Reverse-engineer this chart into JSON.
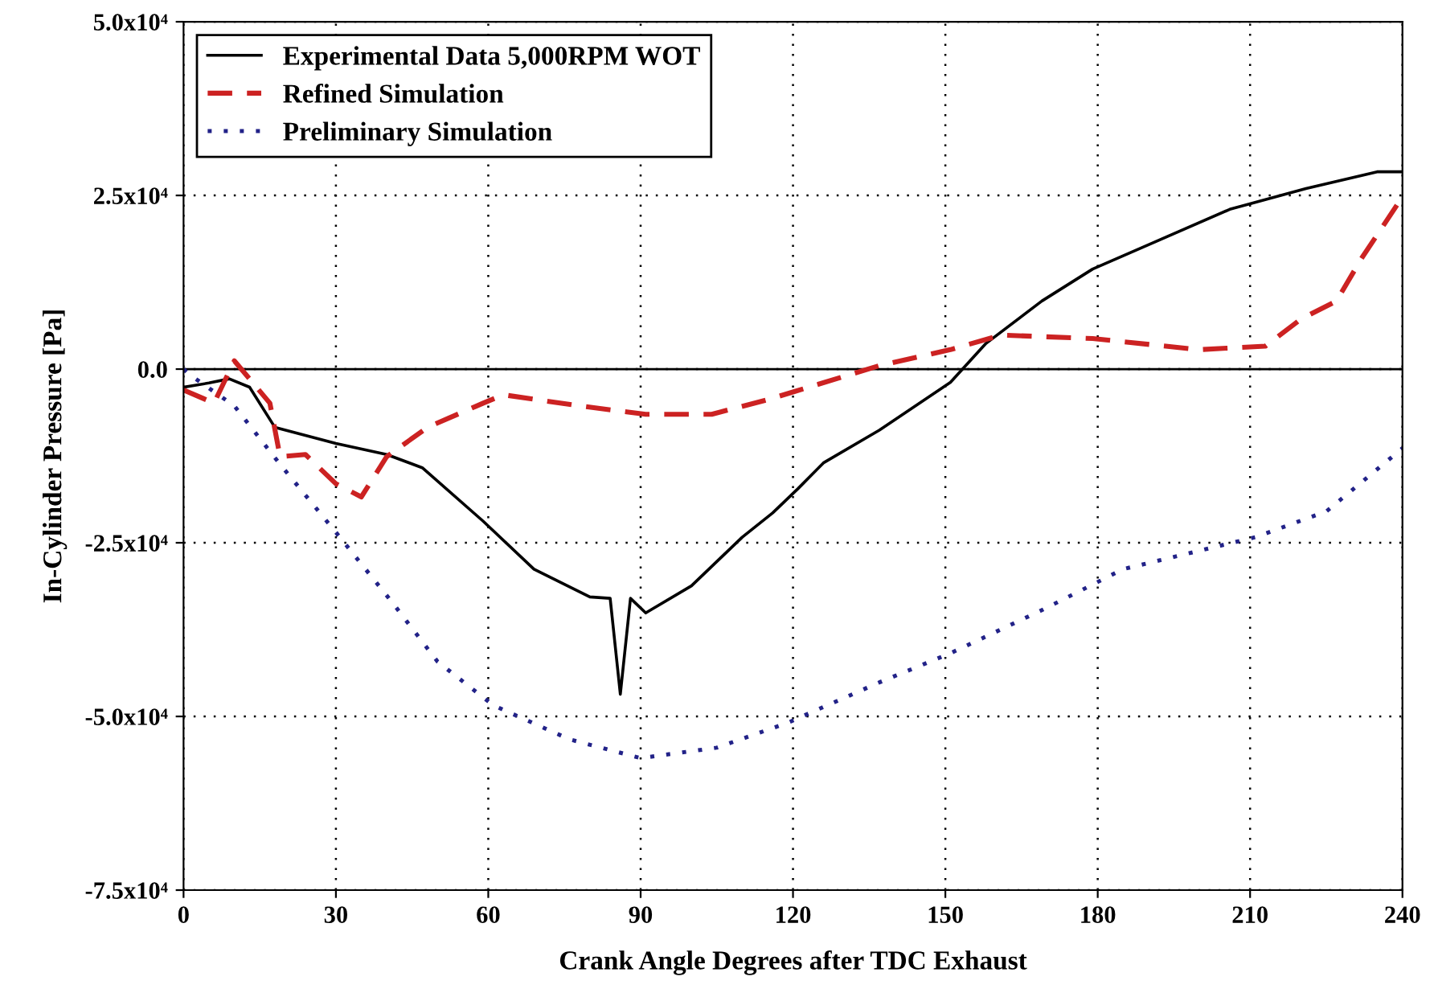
{
  "chart_data": {
    "type": "line",
    "xlabel": "Crank Angle Degrees after TDC Exhaust",
    "ylabel": "In-Cylinder Pressure [Pa]",
    "xlim": [
      0,
      240
    ],
    "xticks": [
      0,
      30,
      60,
      90,
      120,
      150,
      180,
      210,
      240
    ],
    "ylim": [
      -75000,
      50000
    ],
    "yticks": [
      {
        "value": -75000,
        "label": "-7.5x10⁴"
      },
      {
        "value": -50000,
        "label": "-5.0x10⁴"
      },
      {
        "value": -25000,
        "label": "-2.5x10⁴"
      },
      {
        "value": 0,
        "label": "0.0"
      },
      {
        "value": 25000,
        "label": "2.5x10⁴"
      },
      {
        "value": 50000,
        "label": "5.0x10⁴"
      }
    ],
    "grid": true,
    "legend": "top left",
    "ref_lines": [
      {
        "axis": "y",
        "value": 0,
        "color": "#000000",
        "line_style": "solid"
      }
    ],
    "series": [
      {
        "name": "Experimental Data 5,000RPM WOT",
        "color": "#000000",
        "line_style": "solid",
        "x": [
          0,
          5,
          9,
          13,
          18,
          30,
          40,
          47,
          59,
          69,
          80,
          84,
          86,
          88,
          91,
          100,
          110,
          116,
          121,
          126,
          137,
          151,
          158,
          169,
          179,
          190,
          206,
          221,
          235,
          240
        ],
        "values": [
          -2600,
          -2000,
          -1400,
          -2600,
          -8400,
          -10700,
          -12300,
          -14200,
          -21900,
          -28800,
          -32800,
          -33000,
          -46800,
          -33000,
          -35100,
          -31200,
          -24200,
          -20700,
          -17200,
          -13500,
          -8800,
          -1900,
          3700,
          9800,
          14400,
          17900,
          23000,
          26000,
          28400,
          28400
        ]
      },
      {
        "name": "Refined Simulation",
        "color": "#cc2222",
        "line_style": "dashed",
        "x": [
          0,
          6,
          10,
          17,
          19,
          24,
          30,
          35,
          40,
          48,
          59,
          63,
          78,
          91,
          104,
          115,
          120,
          137,
          151,
          161,
          179,
          200,
          213,
          220,
          227,
          232,
          239
        ],
        "values": [
          -3000,
          -4900,
          1200,
          -4900,
          -12600,
          -12300,
          -16500,
          -18400,
          -12600,
          -8400,
          -4900,
          -3700,
          -5300,
          -6500,
          -6500,
          -4400,
          -3300,
          500,
          2800,
          4900,
          4400,
          2800,
          3300,
          7200,
          9800,
          16000,
          23700
        ]
      },
      {
        "name": "Preliminary Simulation",
        "color": "#222288",
        "line_style": "dotted",
        "x": [
          0,
          1,
          10,
          19,
          30,
          41,
          50,
          61,
          76,
          90,
          105,
          119,
          137,
          151,
          169,
          185,
          211,
          225,
          240
        ],
        "values": [
          0,
          -700,
          -5300,
          -13700,
          -23500,
          -33500,
          -42100,
          -48400,
          -53300,
          -56000,
          -54500,
          -50900,
          -45100,
          -40900,
          -34700,
          -28800,
          -24200,
          -20500,
          -11400
        ]
      }
    ]
  }
}
